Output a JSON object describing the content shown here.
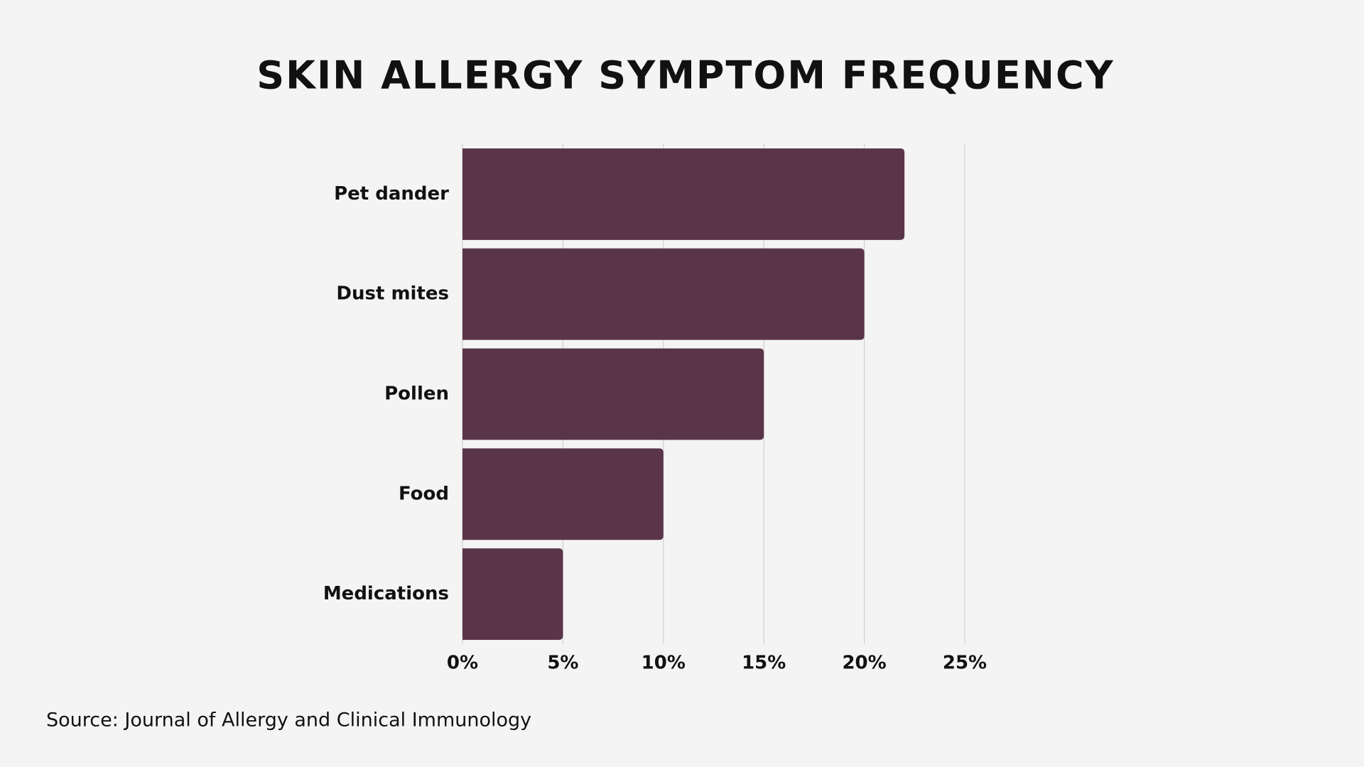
{
  "chart_data": {
    "type": "bar",
    "orientation": "horizontal",
    "title": "SKIN ALLERGY SYMPTOM FREQUENCY",
    "categories": [
      "Pet dander",
      "Dust mites",
      "Pollen",
      "Food",
      "Medications"
    ],
    "values": [
      22,
      20,
      15,
      10,
      5
    ],
    "color": "#5a3549",
    "xlim": [
      0,
      25
    ],
    "xticks": [
      {
        "value": 0,
        "label": "0%"
      },
      {
        "value": 5,
        "label": "5%"
      },
      {
        "value": 10,
        "label": "10%"
      },
      {
        "value": 15,
        "label": "15%"
      },
      {
        "value": 20,
        "label": "20%"
      },
      {
        "value": 25,
        "label": "25%"
      }
    ],
    "grid": true,
    "source": "Source: Journal of Allergy and Clinical Immunology"
  }
}
